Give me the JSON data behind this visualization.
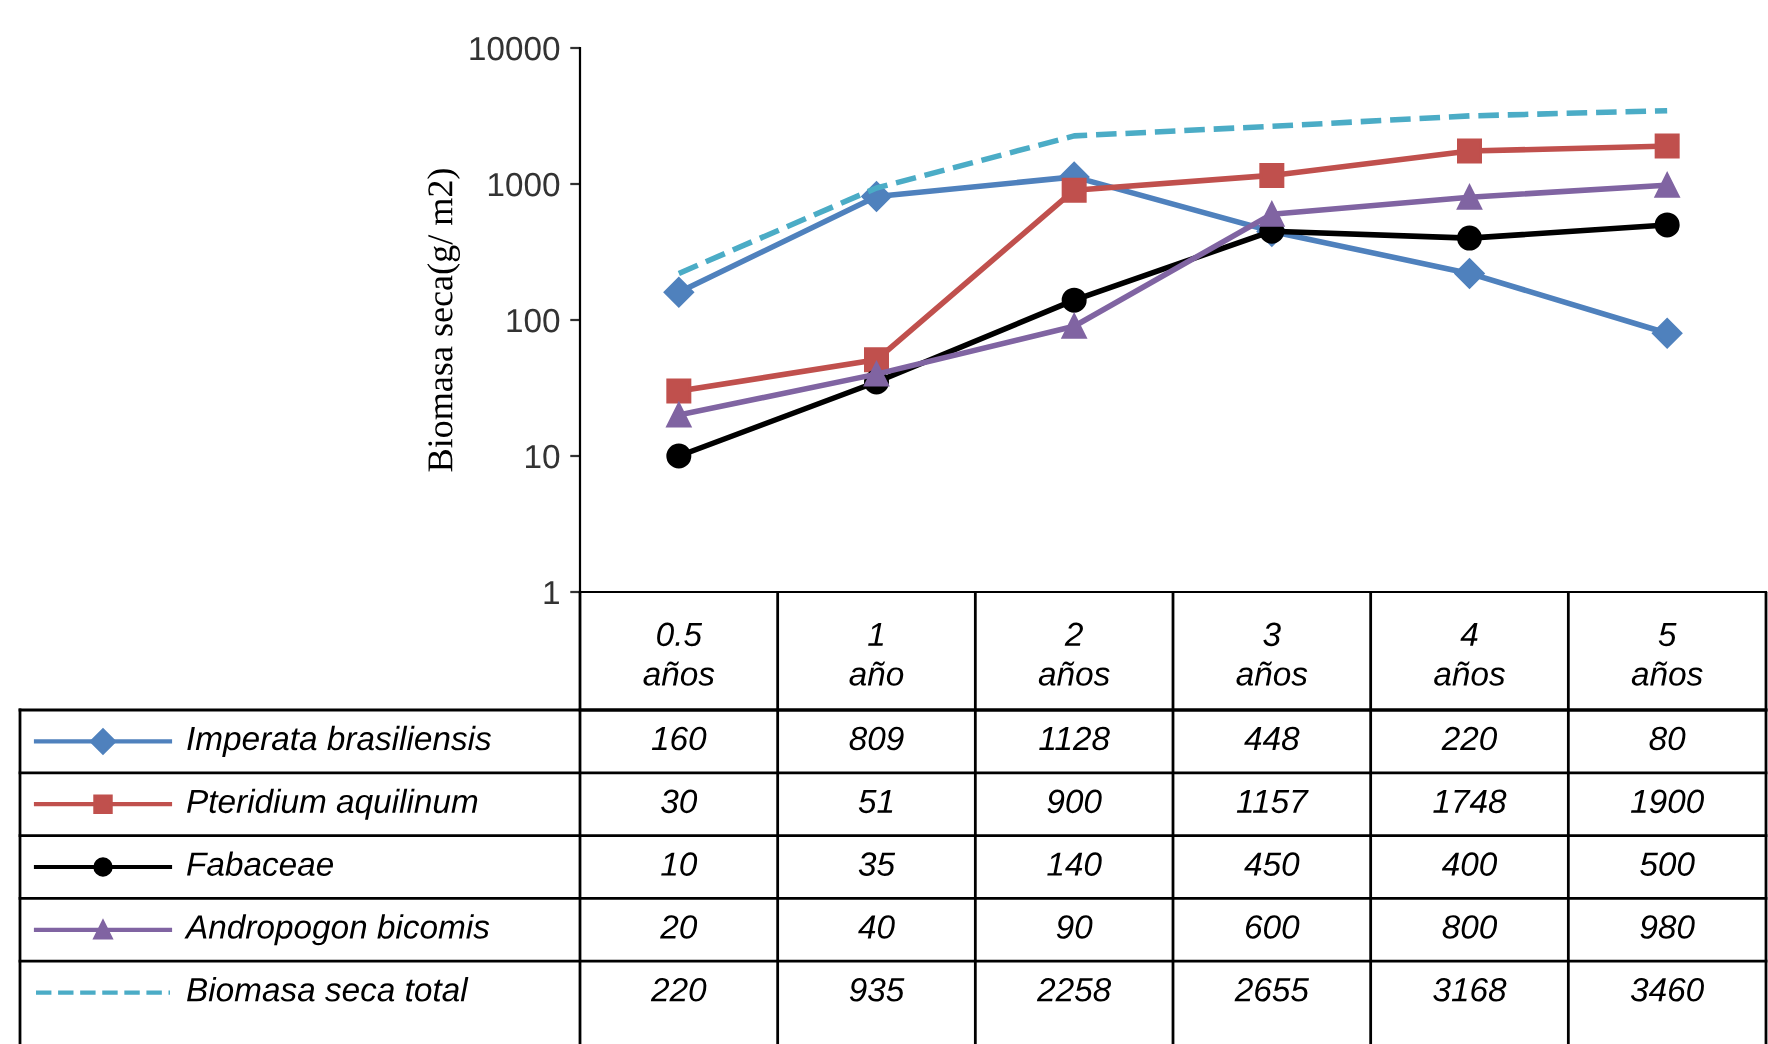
{
  "chart_data": {
    "type": "line",
    "ylabel": "Biomasa seca(g/ m2)",
    "categories": [
      "0.5\naños",
      "1\naño",
      "2\naños",
      "3\naños",
      "4\naños",
      "5\naños"
    ],
    "series": [
      {
        "name": "Imperata brasiliensis",
        "color": "#4f81bd",
        "marker": "diamond",
        "values": [
          160,
          809,
          1128,
          448,
          220,
          80
        ]
      },
      {
        "name": "Pteridium aquilinum",
        "color": "#c0504d",
        "marker": "square",
        "values": [
          30,
          51,
          900,
          1157,
          1748,
          1900
        ]
      },
      {
        "name": "Fabaceae",
        "color": "#000000",
        "marker": "circle",
        "values": [
          10,
          35,
          140,
          450,
          400,
          500
        ]
      },
      {
        "name": "Andropogon bicomis",
        "color": "#8064a2",
        "marker": "triangle",
        "values": [
          20,
          40,
          90,
          600,
          800,
          980
        ]
      },
      {
        "name": "Biomasa seca total",
        "color": "#4bacc6",
        "marker": "none",
        "line_style": "dashed",
        "values": [
          220,
          935,
          2258,
          2655,
          3168,
          3460
        ]
      }
    ],
    "log": true,
    "ylim": [
      1,
      10000
    ],
    "yticks": [
      1,
      10,
      100,
      1000,
      10000
    ],
    "grid": false,
    "legend": "bottom left",
    "data_labels": true
  }
}
